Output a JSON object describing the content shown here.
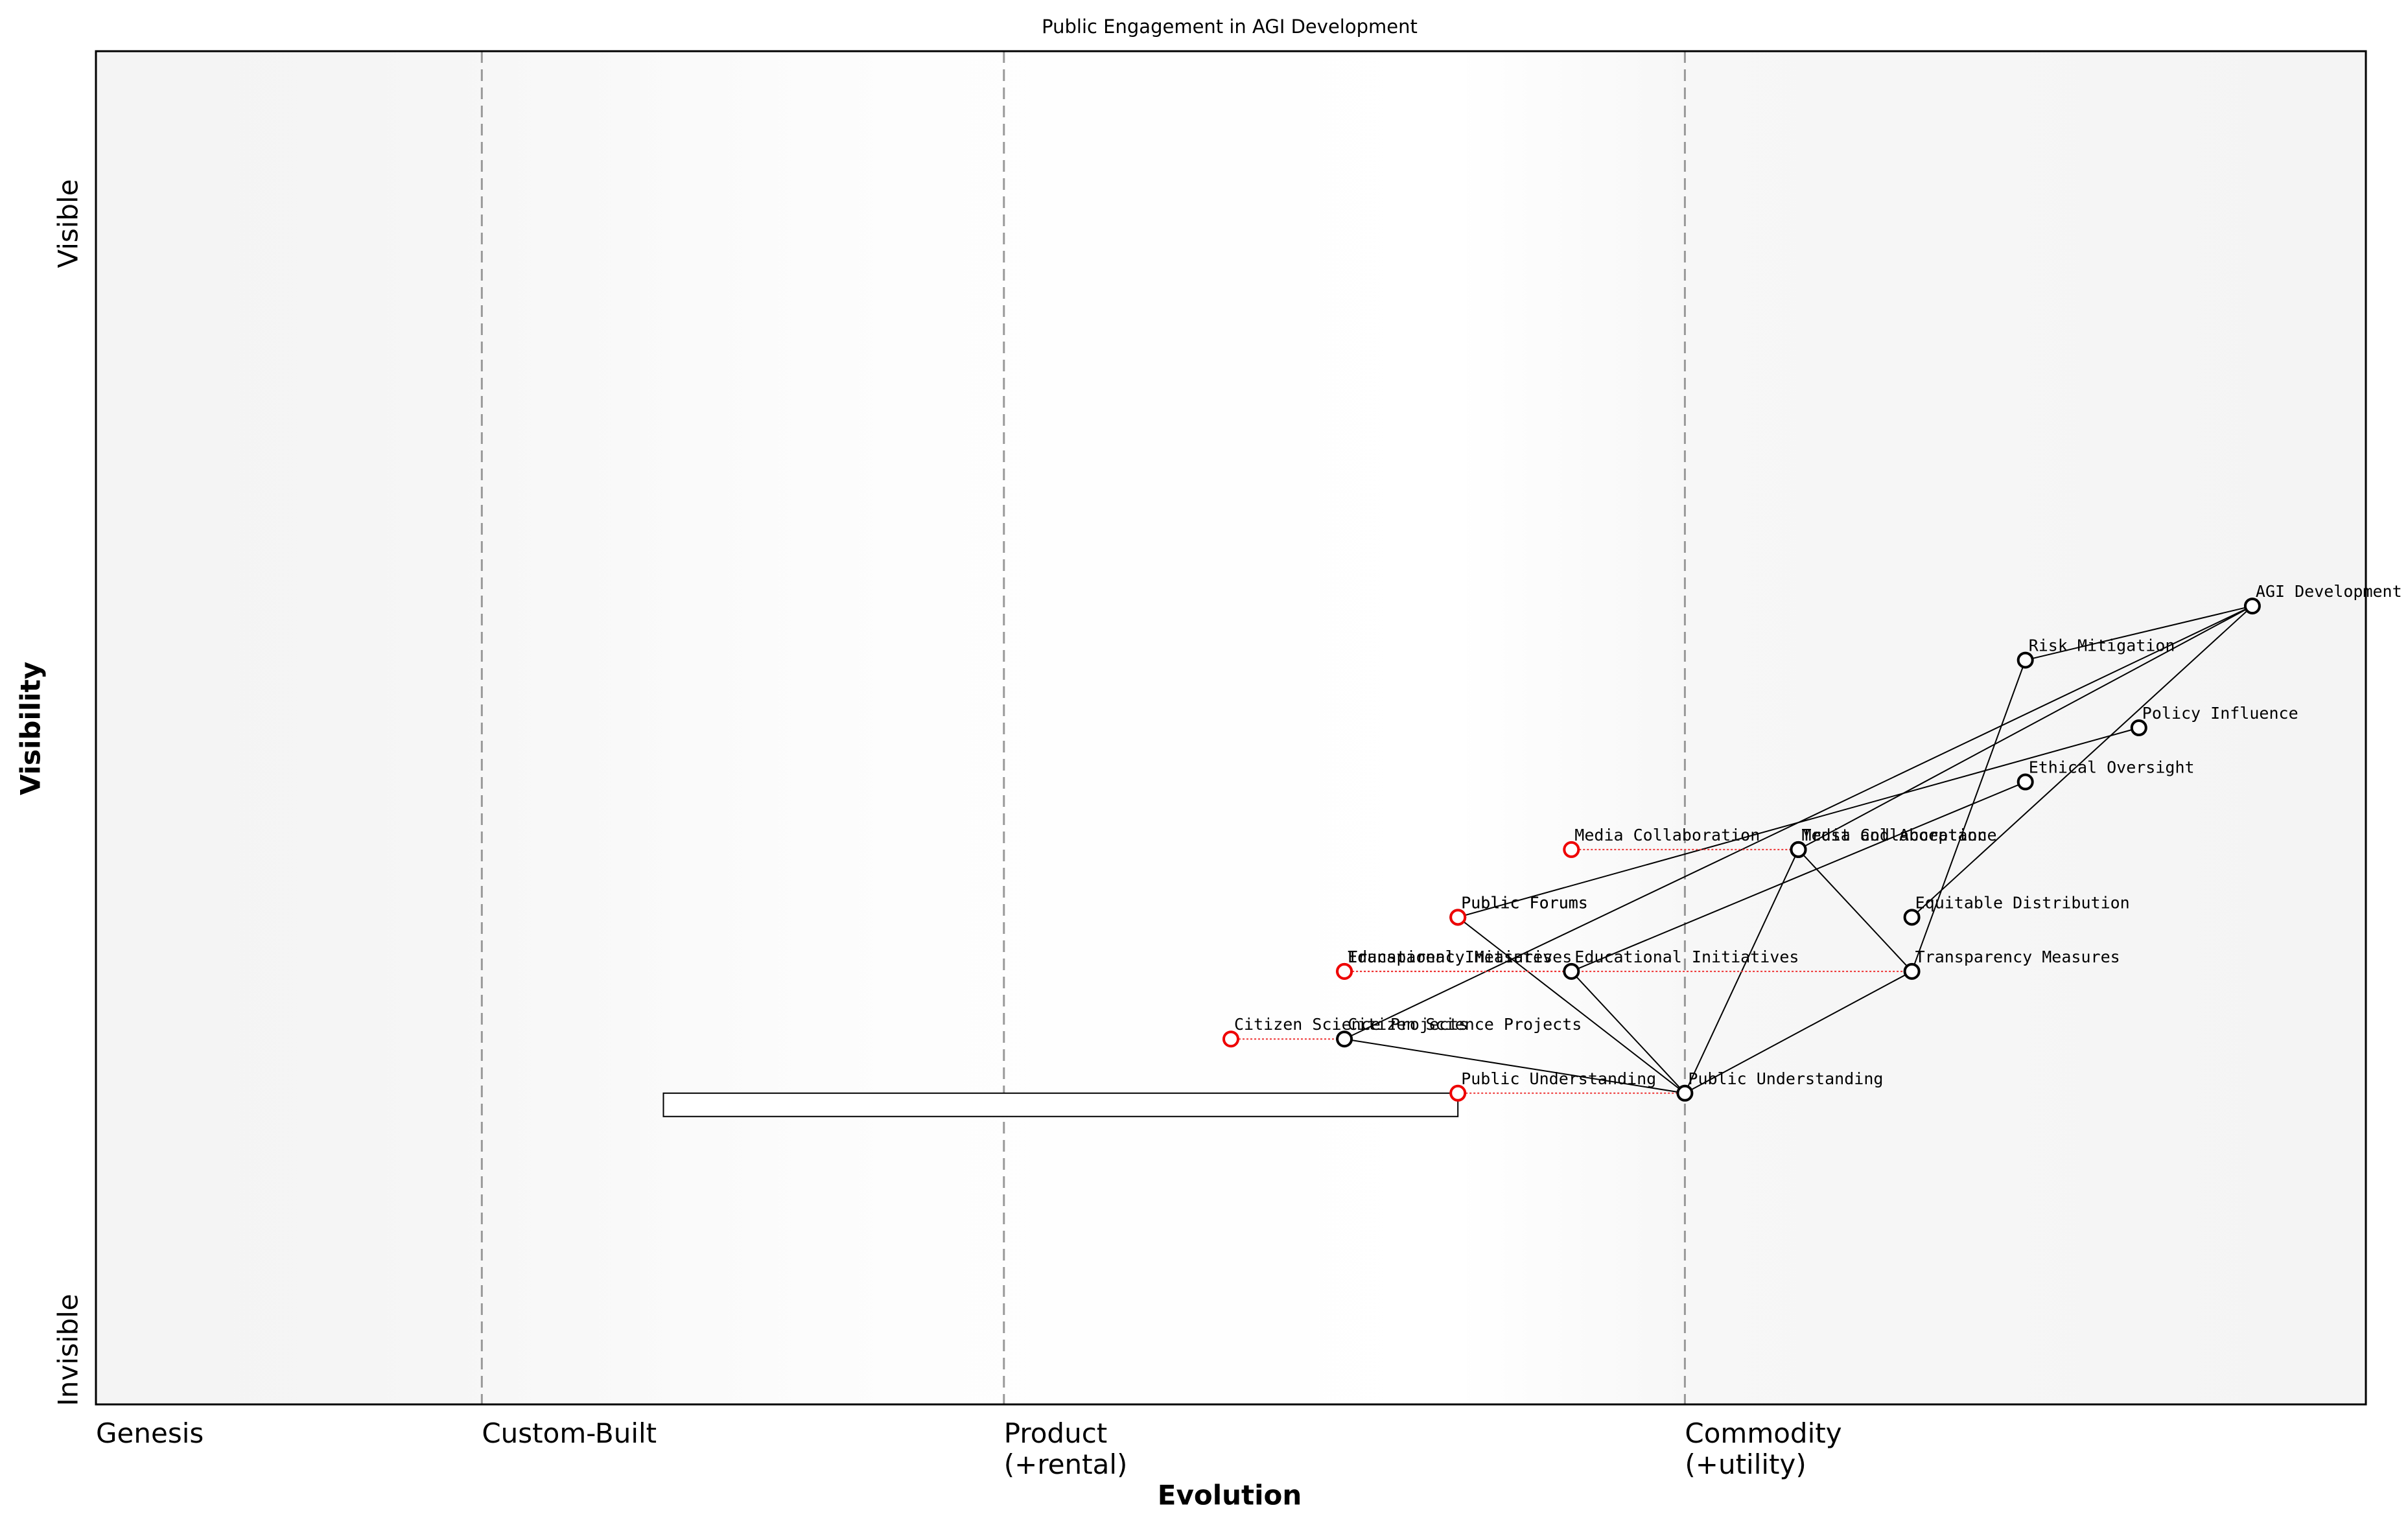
{
  "chart_data": {
    "type": "wardley",
    "title": "Public Engagement in AGI Development",
    "x_label": "Evolution",
    "y_label": "Visibility",
    "y_top_label": "Visible",
    "y_bottom_label": "Invisible",
    "xlim": [
      0,
      1
    ],
    "ylim": [
      0,
      1
    ],
    "stages": [
      {
        "label": "Genesis",
        "at": 0
      },
      {
        "label": "Custom-Built",
        "at": 0.17
      },
      {
        "label": "Product\n(+rental)",
        "at": 0.4
      },
      {
        "label": "Commodity\n(+utility)",
        "at": 0.7
      }
    ],
    "components": [
      {
        "name": "AGI Development",
        "evolution": 0.95,
        "visibility": 0.59
      },
      {
        "name": "Risk Mitigation",
        "evolution": 0.85,
        "visibility": 0.55
      },
      {
        "name": "Policy Influence",
        "evolution": 0.9,
        "visibility": 0.5
      },
      {
        "name": "Ethical Oversight",
        "evolution": 0.85,
        "visibility": 0.46
      },
      {
        "name": "Trust and Acceptance",
        "evolution": 0.75,
        "visibility": 0.41
      },
      {
        "name": "Media Collaboration",
        "evolution": 0.75,
        "visibility": 0.41,
        "from": 0.65
      },
      {
        "name": "Public Forums",
        "evolution": 0.6,
        "visibility": 0.36,
        "from": 0.6
      },
      {
        "name": "Equitable Distribution",
        "evolution": 0.8,
        "visibility": 0.36
      },
      {
        "name": "Transparency Measures",
        "evolution": 0.8,
        "visibility": 0.32,
        "from": 0.55
      },
      {
        "name": "Educational Initiatives",
        "evolution": 0.65,
        "visibility": 0.32,
        "from": 0.55
      },
      {
        "name": "Citizen Science Projects",
        "evolution": 0.55,
        "visibility": 0.27,
        "from": 0.5
      },
      {
        "name": "Public Understanding",
        "evolution": 0.7,
        "visibility": 0.23,
        "from": 0.6
      }
    ],
    "links": [
      {
        "from": "AGI Development",
        "to": "Risk Mitigation"
      },
      {
        "from": "AGI Development",
        "to": "Trust and Acceptance"
      },
      {
        "from": "AGI Development",
        "to": "Equitable Distribution"
      },
      {
        "from": "AGI Development",
        "to": "Citizen Science Projects"
      },
      {
        "from": "Policy Influence",
        "to": "Public Forums"
      },
      {
        "from": "Risk Mitigation",
        "to": "Transparency Measures"
      },
      {
        "from": "Ethical Oversight",
        "to": "Educational Initiatives"
      },
      {
        "from": "Trust and Acceptance",
        "to": "Public Understanding"
      },
      {
        "from": "Trust and Acceptance",
        "to": "Transparency Measures"
      },
      {
        "from": "Public Forums",
        "to": "Public Understanding"
      },
      {
        "from": "Educational Initiatives",
        "to": "Public Understanding"
      },
      {
        "from": "Citizen Science Projects",
        "to": "Public Understanding"
      },
      {
        "from": "Transparency Measures",
        "to": "Public Understanding"
      }
    ],
    "pipelines": [
      {
        "start": 0.25,
        "end": 0.6,
        "visibility": 0.23
      }
    ]
  }
}
